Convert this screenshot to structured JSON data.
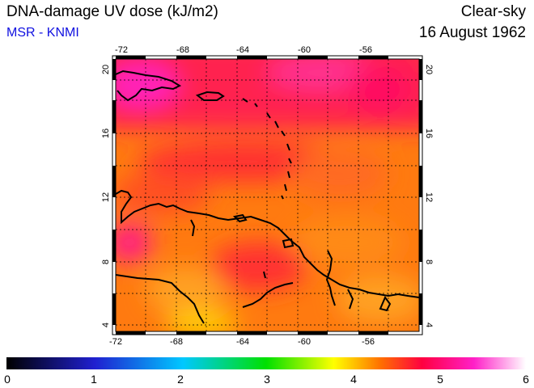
{
  "header": {
    "title": "DNA-damage UV dose (kJ/m2)",
    "source": "MSR - KNMI",
    "sky_condition": "Clear-sky",
    "date": "16 August 1962"
  },
  "map": {
    "lon_range": [
      -72,
      -52
    ],
    "lat_range": [
      3.5,
      20.5
    ],
    "lon_ticks": [
      "-72",
      "-68",
      "-64",
      "-60",
      "-56"
    ],
    "lat_ticks": [
      "4",
      "8",
      "12",
      "16",
      "20"
    ],
    "grid": true,
    "coastline_color": "#000000"
  },
  "colorbar": {
    "min": 0,
    "max": 6,
    "labels": [
      "0",
      "1",
      "2",
      "3",
      "4",
      "5",
      "6"
    ],
    "stops": [
      "#000000",
      "#2020d0",
      "#00c8ff",
      "#00e000",
      "#ffff00",
      "#ff7000",
      "#ff0040",
      "#ff20c8",
      "#ffffff"
    ]
  }
}
